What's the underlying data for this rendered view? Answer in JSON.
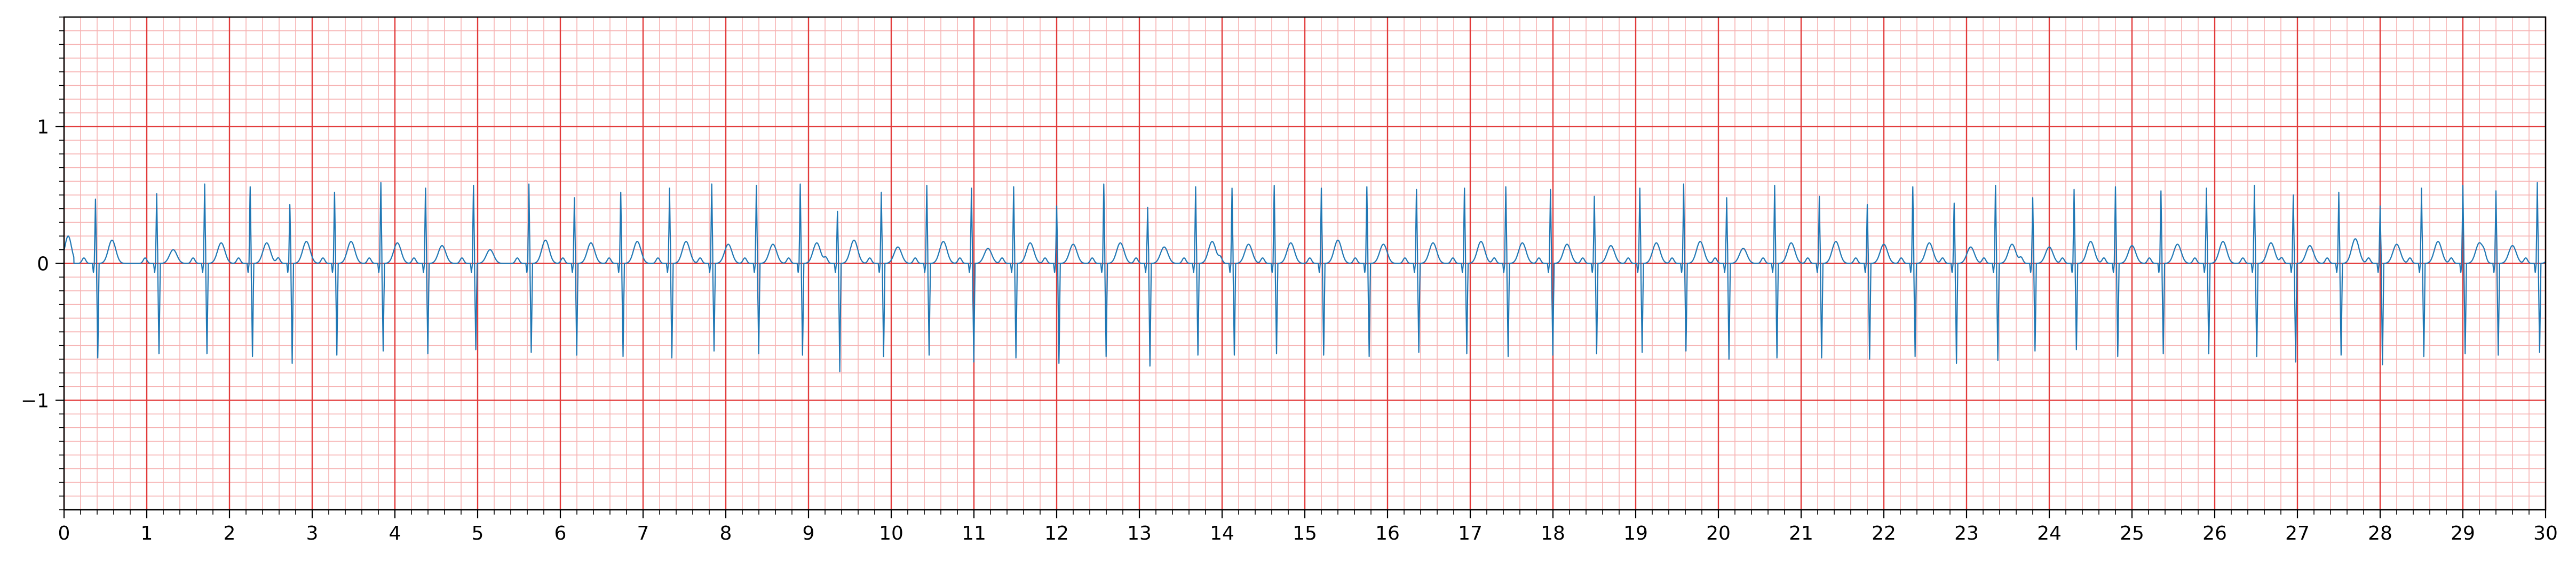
{
  "chart_data": {
    "type": "line",
    "title": "",
    "xlabel": "",
    "ylabel": "",
    "xlim": [
      0,
      30
    ],
    "ylim": [
      -1.8,
      1.8
    ],
    "x_ticks": [
      0,
      1,
      2,
      3,
      4,
      5,
      6,
      7,
      8,
      9,
      10,
      11,
      12,
      13,
      14,
      15,
      16,
      17,
      18,
      19,
      20,
      21,
      22,
      23,
      24,
      25,
      26,
      27,
      28,
      29,
      30
    ],
    "x_tick_labels": [
      "0",
      "1",
      "2",
      "3",
      "4",
      "5",
      "6",
      "7",
      "8",
      "9",
      "10",
      "11",
      "12",
      "13",
      "14",
      "15",
      "16",
      "17",
      "18",
      "19",
      "20",
      "21",
      "22",
      "23",
      "24",
      "25",
      "26",
      "27",
      "28",
      "29",
      "30"
    ],
    "y_ticks": [
      -1,
      0,
      1
    ],
    "y_tick_labels": [
      "−1",
      "0",
      "1"
    ],
    "x_minor_step": 0.2,
    "y_minor_step": 0.1,
    "grid": {
      "on": true,
      "major_color": "#e23b3b",
      "minor_color": "#f6b3b3"
    },
    "series": [
      {
        "color": "#1f77b4",
        "beat_times": [
          0.38,
          1.12,
          1.7,
          2.25,
          2.73,
          3.27,
          3.83,
          4.37,
          4.95,
          5.62,
          6.17,
          6.73,
          7.32,
          7.83,
          8.37,
          8.9,
          9.35,
          9.88,
          10.43,
          10.97,
          11.48,
          12.0,
          12.57,
          13.1,
          13.68,
          14.12,
          14.63,
          15.2,
          15.75,
          16.35,
          16.93,
          17.43,
          17.97,
          18.5,
          19.05,
          19.58,
          20.1,
          20.68,
          21.22,
          21.8,
          22.35,
          22.85,
          23.35,
          23.8,
          24.3,
          24.8,
          25.35,
          25.9,
          26.48,
          26.95,
          27.5,
          28.0,
          28.5,
          29.0,
          29.4,
          29.9
        ],
        "r_peaks": [
          0.47,
          0.51,
          0.58,
          0.56,
          0.43,
          0.52,
          0.59,
          0.55,
          0.57,
          0.58,
          0.48,
          0.52,
          0.55,
          0.58,
          0.57,
          0.58,
          0.38,
          0.52,
          0.57,
          0.55,
          0.56,
          0.42,
          0.58,
          0.41,
          0.56,
          0.55,
          0.57,
          0.55,
          0.56,
          0.54,
          0.55,
          0.56,
          0.54,
          0.49,
          0.55,
          0.58,
          0.48,
          0.57,
          0.49,
          0.43,
          0.56,
          0.44,
          0.57,
          0.48,
          0.54,
          0.56,
          0.53,
          0.55,
          0.57,
          0.5,
          0.52,
          0.42,
          0.55,
          0.57,
          0.53,
          0.59
        ],
        "s_troughs": [
          -0.69,
          -0.66,
          -0.66,
          -0.68,
          -0.73,
          -0.67,
          -0.64,
          -0.66,
          -0.63,
          -0.65,
          -0.67,
          -0.68,
          -0.69,
          -0.64,
          -0.66,
          -0.67,
          -0.79,
          -0.68,
          -0.67,
          -0.72,
          -0.69,
          -0.73,
          -0.68,
          -0.75,
          -0.67,
          -0.67,
          -0.66,
          -0.67,
          -0.68,
          -0.65,
          -0.66,
          -0.68,
          -0.67,
          -0.66,
          -0.65,
          -0.64,
          -0.7,
          -0.69,
          -0.69,
          -0.7,
          -0.68,
          -0.73,
          -0.71,
          -0.64,
          -0.63,
          -0.68,
          -0.66,
          -0.66,
          -0.68,
          -0.72,
          -0.67,
          -0.74,
          -0.68,
          -0.66,
          -0.67,
          -0.65
        ],
        "t_peaks": [
          0.17,
          0.1,
          0.15,
          0.15,
          0.16,
          0.16,
          0.15,
          0.13,
          0.1,
          0.17,
          0.15,
          0.16,
          0.16,
          0.14,
          0.14,
          0.15,
          0.17,
          0.12,
          0.16,
          0.11,
          0.15,
          0.14,
          0.15,
          0.12,
          0.16,
          0.14,
          0.15,
          0.17,
          0.14,
          0.15,
          0.16,
          0.15,
          0.14,
          0.13,
          0.15,
          0.16,
          0.11,
          0.15,
          0.16,
          0.14,
          0.15,
          0.12,
          0.14,
          0.12,
          0.16,
          0.13,
          0.14,
          0.16,
          0.15,
          0.13,
          0.18,
          0.14,
          0.16,
          0.15,
          0.13,
          0.16
        ]
      }
    ]
  }
}
